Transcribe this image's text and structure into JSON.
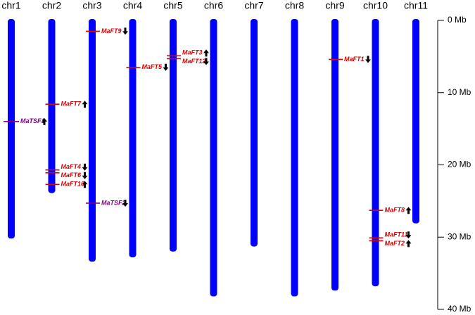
{
  "chart_data": {
    "type": "ideogram",
    "chromosomes": [
      "chr1",
      "chr2",
      "chr3",
      "chr4",
      "chr5",
      "chr6",
      "chr7",
      "chr8",
      "chr9",
      "chr10",
      "chr11"
    ],
    "lengths": [
      30.2,
      23.9,
      33.4,
      32.8,
      32.0,
      38.2,
      31.3,
      38.2,
      37.4,
      36.8,
      28.1
    ],
    "color": "#0000ff",
    "ylim": [
      0,
      40
    ],
    "yticks": [
      {
        "value": 0,
        "label": "0 Mb"
      },
      {
        "value": 10,
        "label": "10 Mb"
      },
      {
        "value": 20,
        "label": "20 Mb"
      },
      {
        "value": 30,
        "label": "30 Mb"
      },
      {
        "value": 40,
        "label": "40 Mb"
      }
    ],
    "genes": [
      {
        "name": "MaTSF1",
        "chromosome": 0,
        "position": 14.0,
        "strand": "up",
        "color": "#800080"
      },
      {
        "name": "MaFT7",
        "chromosome": 1,
        "position": 11.6,
        "strand": "up",
        "color": "#e00000"
      },
      {
        "name": "MaFT4",
        "chromosome": 1,
        "position": 20.7,
        "strand": "down",
        "color": "#e00000"
      },
      {
        "name": "MaFT6",
        "chromosome": 1,
        "position": 21.1,
        "strand": "down",
        "color": "#e00000"
      },
      {
        "name": "MaFT10",
        "chromosome": 1,
        "position": 22.7,
        "strand": "up",
        "color": "#e00000"
      },
      {
        "name": "MaFT9",
        "chromosome": 2,
        "position": 1.5,
        "strand": "down",
        "color": "#e00000"
      },
      {
        "name": "MaTSF2",
        "chromosome": 2,
        "position": 25.3,
        "strand": "down",
        "color": "#800080"
      },
      {
        "name": "MaFT5",
        "chromosome": 3,
        "position": 6.5,
        "strand": "down",
        "color": "#e00000"
      },
      {
        "name": "MaFT3",
        "chromosome": 4,
        "position": 4.9,
        "strand": "up",
        "color": "#e00000"
      },
      {
        "name": "MaFT12",
        "chromosome": 4,
        "position": 5.3,
        "strand": "down",
        "color": "#e00000"
      },
      {
        "name": "MaFT1",
        "chromosome": 8,
        "position": 5.4,
        "strand": "down",
        "color": "#e00000"
      },
      {
        "name": "MaFT8",
        "chromosome": 9,
        "position": 26.3,
        "strand": "up",
        "color": "#e00000"
      },
      {
        "name": "MaFT11",
        "chromosome": 9,
        "position": 30.1,
        "strand": "down",
        "color": "#e00000"
      },
      {
        "name": "MaFT2",
        "chromosome": 9,
        "position": 30.5,
        "strand": "up",
        "color": "#e00000"
      }
    ]
  }
}
